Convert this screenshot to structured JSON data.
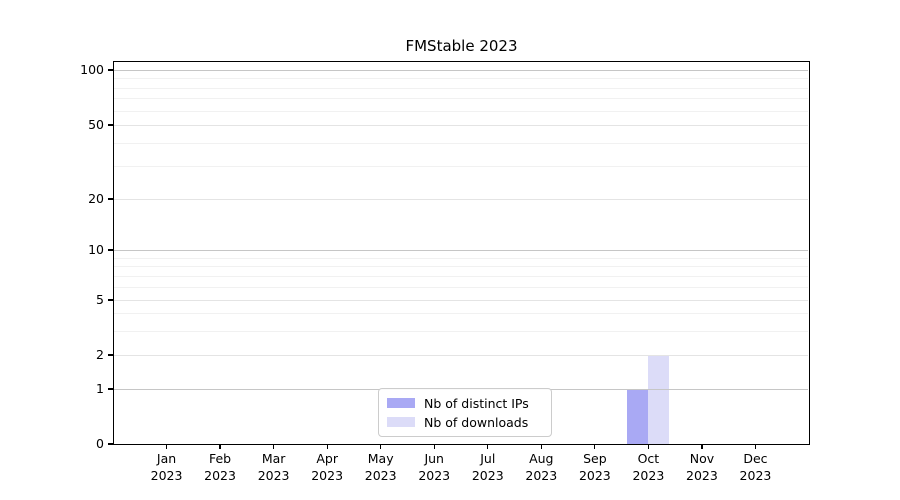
{
  "chart_data": {
    "type": "bar",
    "title": "FMStable 2023",
    "x_ticks": [
      {
        "month": "Jan",
        "year": "2023"
      },
      {
        "month": "Feb",
        "year": "2023"
      },
      {
        "month": "Mar",
        "year": "2023"
      },
      {
        "month": "Apr",
        "year": "2023"
      },
      {
        "month": "May",
        "year": "2023"
      },
      {
        "month": "Jun",
        "year": "2023"
      },
      {
        "month": "Jul",
        "year": "2023"
      },
      {
        "month": "Aug",
        "year": "2023"
      },
      {
        "month": "Sep",
        "year": "2023"
      },
      {
        "month": "Oct",
        "year": "2023"
      },
      {
        "month": "Nov",
        "year": "2023"
      },
      {
        "month": "Dec",
        "year": "2023"
      }
    ],
    "y_axis": {
      "scale": "symlog",
      "ticks": [
        0,
        1,
        2,
        5,
        10,
        20,
        50,
        100
      ],
      "minor_ticks": [
        3,
        4,
        6,
        7,
        8,
        9,
        30,
        40,
        60,
        70,
        80,
        90
      ],
      "ylim": [
        0,
        110
      ]
    },
    "series": [
      {
        "name": "Nb of distinct IPs",
        "color": "#a9a9f4",
        "values": [
          0,
          0,
          0,
          0,
          0,
          0,
          0,
          0,
          0,
          1,
          0,
          0
        ]
      },
      {
        "name": "Nb of downloads",
        "color": "#dcdcf8",
        "values": [
          0,
          0,
          0,
          0,
          0,
          0,
          0,
          0,
          0,
          2,
          0,
          0
        ]
      }
    ],
    "legend": {
      "position": "lower center"
    },
    "grid": true
  },
  "colors": {
    "grid_decade": "#c6c6c6",
    "grid_major": "#e4e4e4",
    "grid_minor": "#f1f1f1",
    "axis": "#000000",
    "legend_border": "#cccccc",
    "background": "#ffffff"
  }
}
